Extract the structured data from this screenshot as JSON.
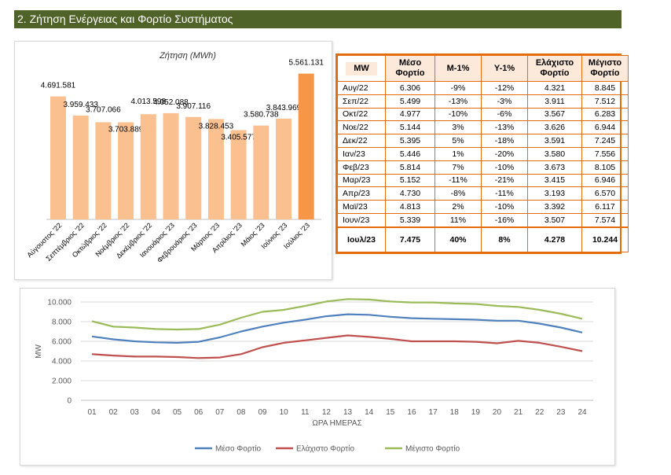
{
  "header": {
    "title": "2. Ζήτηση Ενέργειας και Φορτίο Συστήματος"
  },
  "colors": {
    "bar": "#fac090",
    "bar_highlight": "#f79646",
    "header_bg": "#4f6228",
    "table_border": "#e46c0a",
    "mean": "#4f81bd",
    "min": "#c0504d",
    "max": "#9bbb59"
  },
  "chart_data": [
    {
      "type": "bar",
      "title": "Ζήτηση (MWh)",
      "categories": [
        "Αύγουστος '22",
        "Σεπτέμβριος '22",
        "Οκτώβριος '22",
        "Νοέμβριος '22",
        "Δεκέμβριος '22",
        "Ιανουάριος '23",
        "Φεβρουάριος '23",
        "Μάρτιος '23",
        "Απρίλιος '23",
        "Μάιος '23",
        "Ιούνιος '23",
        "Ιούλιος '23"
      ],
      "values": [
        4691581,
        3959433,
        3707066,
        3703889,
        4013598,
        4052088,
        3907116,
        3828453,
        3405577,
        3580738,
        3843969,
        5561131
      ],
      "labels": [
        "4.691.581",
        "3.959.433",
        "3.707.066",
        "3.703.889",
        "4.013.598",
        "4.052.088",
        "3.907.116",
        "3.828.453",
        "3.405.577",
        "3.580.738",
        "3.843.969",
        "5.561.131"
      ],
      "ylim": [
        0,
        6000000
      ]
    },
    {
      "type": "line",
      "x": [
        "01",
        "02",
        "03",
        "04",
        "05",
        "06",
        "07",
        "08",
        "09",
        "10",
        "11",
        "12",
        "13",
        "14",
        "15",
        "16",
        "17",
        "18",
        "19",
        "20",
        "21",
        "22",
        "23",
        "24"
      ],
      "xlabel": "ΩΡΑ ΗΜΕΡΑΣ",
      "ylabel": "MW",
      "ylim": [
        0,
        10000
      ],
      "yticks": [
        0,
        2000,
        4000,
        6000,
        8000,
        10000
      ],
      "ytick_labels": [
        "0",
        "2.000",
        "4.000",
        "6.000",
        "8.000",
        "10.000"
      ],
      "series": [
        {
          "name": "Μέσο Φορτίο",
          "values": [
            6500,
            6200,
            6000,
            5900,
            5850,
            5950,
            6400,
            7000,
            7500,
            7900,
            8200,
            8550,
            8750,
            8700,
            8500,
            8350,
            8300,
            8250,
            8200,
            8100,
            8100,
            7800,
            7400,
            6900
          ]
        },
        {
          "name": "Ελάχιστο Φορτίο",
          "values": [
            4700,
            4550,
            4450,
            4450,
            4400,
            4300,
            4350,
            4700,
            5400,
            5850,
            6100,
            6350,
            6600,
            6450,
            6250,
            6000,
            6000,
            6000,
            5950,
            5800,
            6050,
            5850,
            5450,
            5000
          ]
        },
        {
          "name": "Μέγιστο Φορτίο",
          "values": [
            8050,
            7500,
            7400,
            7250,
            7200,
            7250,
            7700,
            8400,
            9000,
            9200,
            9600,
            10050,
            10300,
            10250,
            10050,
            9950,
            9950,
            9850,
            9800,
            9600,
            9500,
            9200,
            8800,
            8300
          ]
        }
      ],
      "legend": "bottom"
    }
  ],
  "table": {
    "headers": [
      "MW",
      "Μέσο Φορτίο",
      "Μ-1%",
      "Υ-1%",
      "Ελάχιστο Φορτίο",
      "Μέγιστο Φορτίο"
    ],
    "rows": [
      [
        "Αυγ/22",
        "6.306",
        "-9%",
        "-12%",
        "4.321",
        "8.845"
      ],
      [
        "Σεπ/22",
        "5.499",
        "-13%",
        "-3%",
        "3.911",
        "7.512"
      ],
      [
        "Οκτ/22",
        "4.977",
        "-10%",
        "-6%",
        "3.567",
        "6.283"
      ],
      [
        "Νοε/22",
        "5.144",
        "3%",
        "-13%",
        "3.626",
        "6.944"
      ],
      [
        "Δεκ/22",
        "5.395",
        "5%",
        "-18%",
        "3.591",
        "7.245"
      ],
      [
        "Ιαν/23",
        "5.446",
        "1%",
        "-20%",
        "3.580",
        "7.556"
      ],
      [
        "Φεβ/23",
        "5.814",
        "7%",
        "-10%",
        "3.673",
        "8.105"
      ],
      [
        "Μαρ/23",
        "5.152",
        "-11%",
        "-21%",
        "3.415",
        "6.946"
      ],
      [
        "Απρ/23",
        "4.730",
        "-8%",
        "-11%",
        "3.193",
        "6.570"
      ],
      [
        "Μαϊ/23",
        "4.813",
        "2%",
        "-10%",
        "3.392",
        "6.117"
      ],
      [
        "Ιουν/23",
        "5.339",
        "11%",
        "-16%",
        "3.507",
        "7.574"
      ]
    ],
    "last_row": [
      "Ιουλ/23",
      "7.475",
      "40%",
      "8%",
      "4.278",
      "10.244"
    ]
  }
}
